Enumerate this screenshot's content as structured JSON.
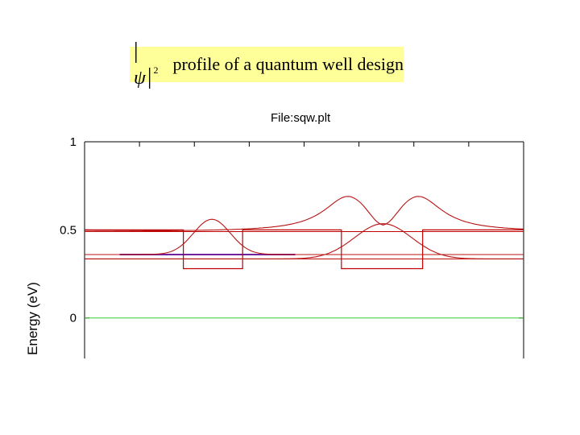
{
  "header": {
    "symbol": "ψ",
    "exponent": "2",
    "title_text": "profile of a quantum well design"
  },
  "chart_data": {
    "type": "line",
    "title": "|ψ|2 profile of a quantum well design",
    "subtitle": "File:sqw.plt",
    "ylabel": "Energy (eV)",
    "xlabel": "",
    "xlim": [
      0,
      100
    ],
    "ylim": [
      -0.23,
      1.0
    ],
    "yticks": [
      {
        "value": 1,
        "label": "1"
      },
      {
        "value": 0.5,
        "label": "0.5"
      },
      {
        "value": 0,
        "label": "0"
      }
    ],
    "xtick_positions": [
      12.5,
      25,
      37.5,
      50,
      62.5,
      75,
      87.5
    ],
    "colors": {
      "band": "#c00000",
      "wave": "#b81414",
      "level": "#c00000",
      "ground": "#7020a0",
      "zero": "#33cc33",
      "frame": "#000000"
    },
    "band_edge": {
      "x": [
        0,
        22.5,
        22.5,
        36,
        36,
        58.5,
        58.5,
        77,
        77,
        100
      ],
      "y": [
        0.5,
        0.5,
        0.28,
        0.28,
        0.5,
        0.5,
        0.28,
        0.28,
        0.5,
        0.5
      ]
    },
    "levels": [
      {
        "y": 0.49,
        "x": [
          0,
          100
        ]
      },
      {
        "y": 0.36,
        "x": [
          0,
          100
        ]
      },
      {
        "y": 0.335,
        "x": [
          0,
          100
        ]
      },
      {
        "y": 0.36,
        "x": [
          8,
          48
        ],
        "ground": true
      }
    ],
    "wavefunctions": [
      {
        "base": 0.36,
        "center": 29,
        "amp": 0.2,
        "sigma": 4.2
      },
      {
        "base": 0.335,
        "center": 68,
        "amp": 0.2,
        "sigma": 6.5
      },
      {
        "base": 0.49,
        "peaks": [
          60,
          76
        ],
        "amp": 0.2,
        "sigma": 4.5,
        "tail": 10
      }
    ],
    "zero_line": {
      "y": 0
    }
  }
}
